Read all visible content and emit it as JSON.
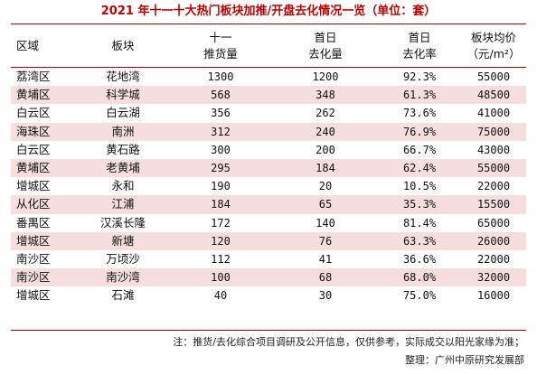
{
  "title": "2021 年十一十大热门板块加推/开盘去化情况一览（单位：套）",
  "headers": {
    "area": "区域",
    "block": "板块",
    "supply_line1": "十一",
    "supply_line2": "推货量",
    "sold_line1": "首日",
    "sold_line2": "去化量",
    "rate_line1": "首日",
    "rate_line2": "去化率",
    "price_line1": "板块均价",
    "price_line2": "（元/m²）"
  },
  "rows": [
    {
      "area": "荔湾区",
      "block": "花地湾",
      "supply": "1300",
      "sold": "1200",
      "rate": "92.3%",
      "price": "55000"
    },
    {
      "area": "黄埔区",
      "block": "科学城",
      "supply": "568",
      "sold": "348",
      "rate": "61.3%",
      "price": "48500"
    },
    {
      "area": "白云区",
      "block": "白云湖",
      "supply": "356",
      "sold": "262",
      "rate": "73.6%",
      "price": "41000"
    },
    {
      "area": "海珠区",
      "block": "南洲",
      "supply": "312",
      "sold": "240",
      "rate": "76.9%",
      "price": "75000"
    },
    {
      "area": "白云区",
      "block": "黄石路",
      "supply": "300",
      "sold": "200",
      "rate": "66.7%",
      "price": "43000"
    },
    {
      "area": "黄埔区",
      "block": "老黄埔",
      "supply": "295",
      "sold": "184",
      "rate": "62.4%",
      "price": "55000"
    },
    {
      "area": "增城区",
      "block": "永和",
      "supply": "190",
      "sold": "20",
      "rate": "10.5%",
      "price": "22000"
    },
    {
      "area": "从化区",
      "block": "江浦",
      "supply": "184",
      "sold": "65",
      "rate": "35.3%",
      "price": "15500"
    },
    {
      "area": "番禺区",
      "block": "汉溪长隆",
      "supply": "172",
      "sold": "140",
      "rate": "81.4%",
      "price": "65000"
    },
    {
      "area": "增城区",
      "block": "新塘",
      "supply": "120",
      "sold": "76",
      "rate": "63.3%",
      "price": "26000"
    },
    {
      "area": "南沙区",
      "block": "万顷沙",
      "supply": "112",
      "sold": "41",
      "rate": "36.6%",
      "price": "22000"
    },
    {
      "area": "南沙区",
      "block": "南沙湾",
      "supply": "100",
      "sold": "68",
      "rate": "68.0%",
      "price": "32000"
    },
    {
      "area": "增城区",
      "block": "石滩",
      "supply": "40",
      "sold": "30",
      "rate": "75.0%",
      "price": "16000"
    }
  ],
  "note": "注：推货/去化综合项目调研及公开信息，仅供参考，实际成交以阳光家缘为准；",
  "source": "整理：广州中原研究发展部",
  "colors": {
    "accent": "#c00000",
    "row_shade": "#f6dede"
  }
}
